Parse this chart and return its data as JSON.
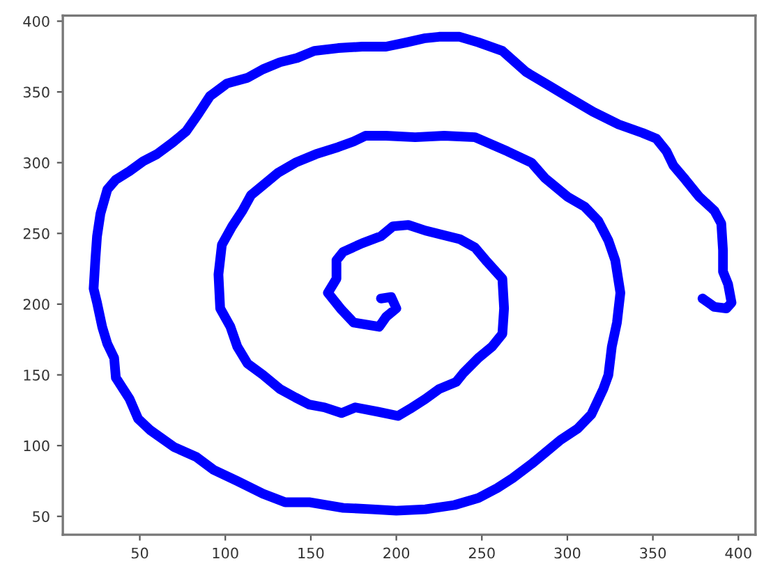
{
  "chart_data": {
    "type": "line",
    "color": "#0000ff",
    "grid": false,
    "marker": "none",
    "line_style": "solid",
    "xlim": [
      5,
      410
    ],
    "ylim": [
      37,
      404
    ],
    "xticks": [
      50,
      100,
      150,
      200,
      250,
      300,
      350,
      400
    ],
    "yticks": [
      50,
      100,
      150,
      200,
      250,
      300,
      350,
      400
    ],
    "x": [
      191,
      197,
      200,
      194,
      190,
      175,
      168,
      160,
      165,
      165,
      169,
      180,
      191,
      198,
      207,
      217,
      237,
      246,
      253,
      262,
      263,
      262,
      256,
      248,
      239,
      235,
      225,
      217,
      208,
      201,
      189,
      176,
      168,
      158,
      149,
      141,
      132,
      122,
      113,
      107,
      103,
      97,
      96,
      98,
      104,
      110,
      115,
      124,
      131,
      141,
      153,
      166,
      175,
      182,
      194,
      211,
      228,
      246,
      265,
      279,
      287,
      300,
      310,
      318,
      324,
      328,
      331,
      329,
      326,
      324,
      321,
      314,
      306,
      296,
      287,
      279,
      268,
      259,
      248,
      234,
      217,
      200,
      186,
      169,
      149,
      135,
      122,
      107,
      93,
      83,
      70,
      56,
      49,
      44,
      36,
      35,
      31,
      28,
      25,
      23,
      24,
      25,
      27,
      31,
      36,
      44,
      52,
      60,
      69,
      77,
      84,
      91,
      101,
      113,
      122,
      132,
      142,
      152,
      166,
      180,
      194,
      206,
      217,
      225,
      237,
      248,
      262,
      276,
      290,
      301,
      315,
      330,
      344,
      352,
      358,
      362,
      369,
      377,
      386,
      390,
      391,
      391,
      394,
      396,
      393,
      386,
      379
    ],
    "values": [
      204,
      205,
      197,
      191,
      184,
      187,
      196,
      208,
      218,
      231,
      237,
      243,
      248,
      255,
      256,
      252,
      246,
      240,
      230,
      218,
      197,
      179,
      170,
      162,
      151,
      145,
      140,
      133,
      126,
      121,
      124,
      127,
      123,
      127,
      129,
      134,
      140,
      150,
      158,
      170,
      184,
      197,
      221,
      242,
      255,
      266,
      277,
      286,
      293,
      300,
      306,
      311,
      315,
      319,
      319,
      318,
      319,
      318,
      308,
      300,
      289,
      276,
      269,
      259,
      245,
      231,
      208,
      187,
      170,
      150,
      140,
      122,
      112,
      104,
      95,
      87,
      77,
      70,
      63,
      58,
      55,
      54,
      55,
      56,
      60,
      60,
      66,
      75,
      83,
      92,
      99,
      111,
      119,
      133,
      148,
      162,
      172,
      184,
      201,
      211,
      231,
      248,
      264,
      281,
      288,
      294,
      301,
      306,
      314,
      322,
      334,
      347,
      356,
      360,
      366,
      371,
      374,
      379,
      381,
      382,
      382,
      385,
      388,
      389,
      389,
      385,
      379,
      364,
      354,
      346,
      336,
      327,
      321,
      317,
      308,
      298,
      288,
      276,
      266,
      257,
      238,
      223,
      214,
      201,
      197,
      198,
      204
    ]
  }
}
